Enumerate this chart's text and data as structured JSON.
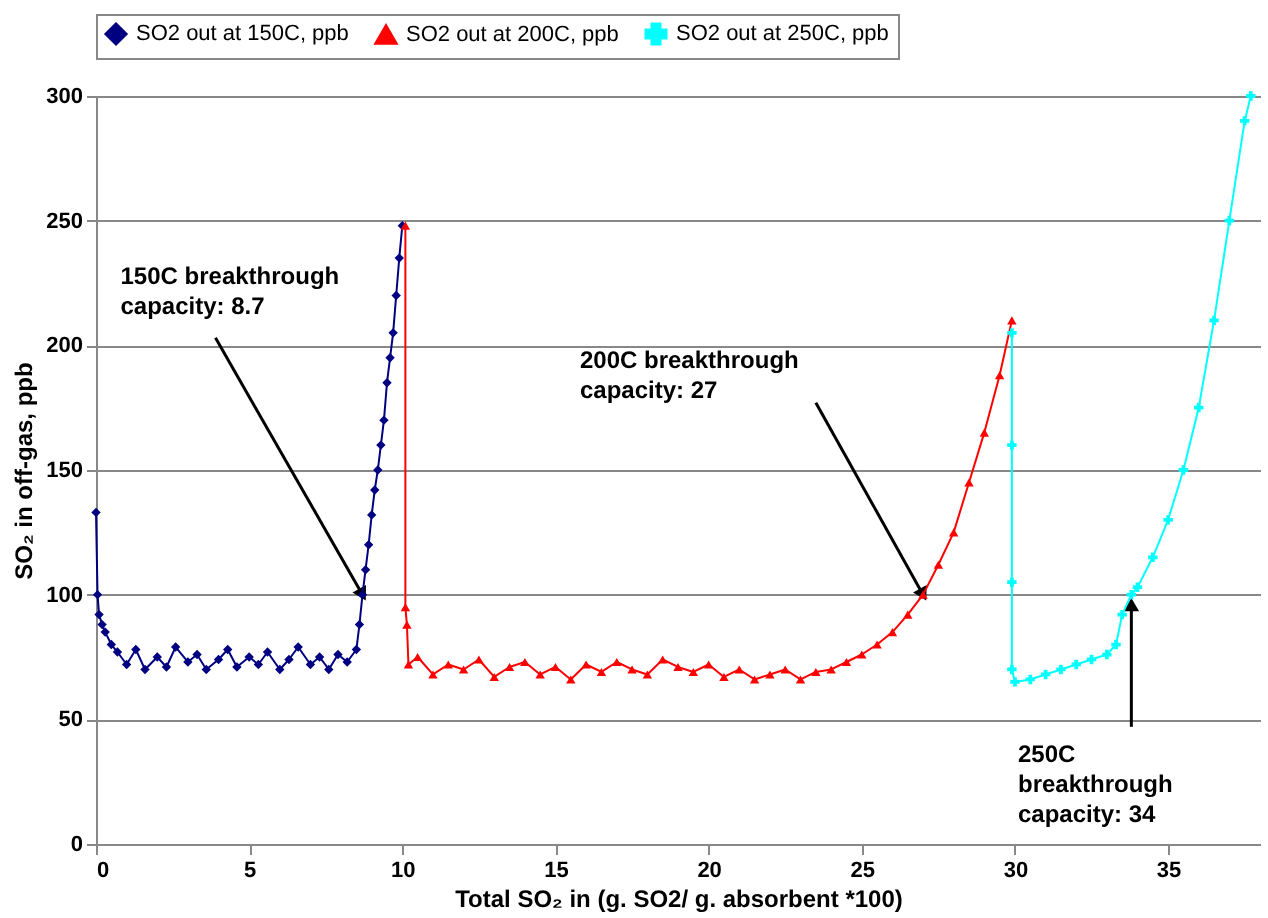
{
  "chart_data": {
    "type": "line",
    "xlabel": "Total SO₂ in (g. SO2/ g. absorbent *100)",
    "ylabel": "SO₂ in off-gas, ppb",
    "xlim": [
      0,
      38
    ],
    "xticks": [
      0,
      5,
      10,
      15,
      20,
      25,
      30,
      35
    ],
    "ylim": [
      0,
      300
    ],
    "yticks": [
      0,
      50,
      100,
      150,
      200,
      250,
      300
    ],
    "grid": "y",
    "legend": "top",
    "series": [
      {
        "name": "SO2 out at 150C, ppb",
        "color": "#000080",
        "marker": "diamond",
        "x": [
          0,
          0.05,
          0.1,
          0.2,
          0.3,
          0.5,
          0.7,
          1,
          1.3,
          1.6,
          2,
          2.3,
          2.6,
          3,
          3.3,
          3.6,
          4,
          4.3,
          4.6,
          5,
          5.3,
          5.6,
          6,
          6.3,
          6.6,
          7,
          7.3,
          7.6,
          7.9,
          8.2,
          8.5,
          8.6,
          8.7,
          8.8,
          8.9,
          9.0,
          9.1,
          9.2,
          9.3,
          9.4,
          9.5,
          9.6,
          9.7,
          9.8,
          9.9,
          10.0
        ],
        "values": [
          133,
          100,
          92,
          88,
          85,
          80,
          77,
          72,
          78,
          70,
          75,
          71,
          79,
          73,
          76,
          70,
          74,
          78,
          71,
          75,
          72,
          77,
          70,
          74,
          79,
          72,
          75,
          70,
          76,
          73,
          78,
          88,
          100,
          110,
          120,
          132,
          142,
          150,
          160,
          170,
          185,
          195,
          205,
          220,
          235,
          248
        ]
      },
      {
        "name": "SO2 out at 200C, ppb",
        "color": "#ff0000",
        "marker": "triangle",
        "x": [
          10.1,
          10.1,
          10.15,
          10.2,
          10.5,
          11,
          11.5,
          12,
          12.5,
          13,
          13.5,
          14,
          14.5,
          15,
          15.5,
          16,
          16.5,
          17,
          17.5,
          18,
          18.5,
          19,
          19.5,
          20,
          20.5,
          21,
          21.5,
          22,
          22.5,
          23,
          23.5,
          24,
          24.5,
          25,
          25.5,
          26,
          26.5,
          27,
          27.5,
          28,
          28.5,
          29,
          29.5,
          29.9
        ],
        "values": [
          248,
          95,
          88,
          72,
          75,
          68,
          72,
          70,
          74,
          67,
          71,
          73,
          68,
          71,
          66,
          72,
          69,
          73,
          70,
          68,
          74,
          71,
          69,
          72,
          67,
          70,
          66,
          68,
          70,
          66,
          69,
          70,
          73,
          76,
          80,
          85,
          92,
          100,
          112,
          125,
          145,
          165,
          188,
          210
        ]
      },
      {
        "name": "SO2 out at 250C, ppb",
        "color": "#00ffff",
        "marker": "cross",
        "x": [
          29.9,
          29.9,
          29.9,
          29.9,
          30,
          30.5,
          31,
          31.5,
          32,
          32.5,
          33,
          33.3,
          33.5,
          33.8,
          34,
          34.5,
          35,
          35.5,
          36,
          36.5,
          37,
          37.5,
          37.7
        ],
        "values": [
          205,
          160,
          105,
          70,
          65,
          66,
          68,
          70,
          72,
          74,
          76,
          80,
          92,
          100,
          103,
          115,
          130,
          150,
          175,
          210,
          250,
          290,
          300
        ]
      }
    ],
    "annotations": [
      {
        "text": "150C breakthrough\ncapacity: 8.7",
        "x": 8.7,
        "y": 100
      },
      {
        "text": "200C breakthrough\ncapacity: 27",
        "x": 27,
        "y": 100
      },
      {
        "text": "250C\nbreakthrough\ncapacity: 34",
        "x": 33.8,
        "y": 96
      }
    ]
  }
}
